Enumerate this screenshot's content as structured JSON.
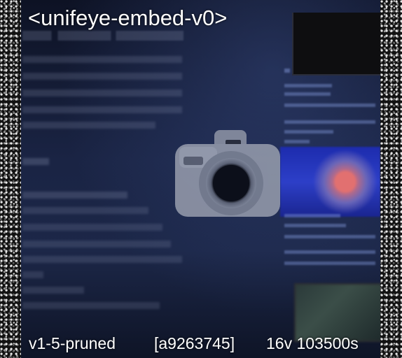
{
  "caption": {
    "title": "<unifeye-embed-v0>",
    "variant": "v1-5-pruned",
    "hash": "[a9263745]",
    "stats": "16v 103500s"
  },
  "icons": {
    "center": "camera-icon"
  },
  "colors": {
    "background": "#1a2444",
    "border_dots": "#121212",
    "caption_text": "#ffffff",
    "eye_blue": "#2d3fc8",
    "eye_pupil": "#e27070"
  }
}
